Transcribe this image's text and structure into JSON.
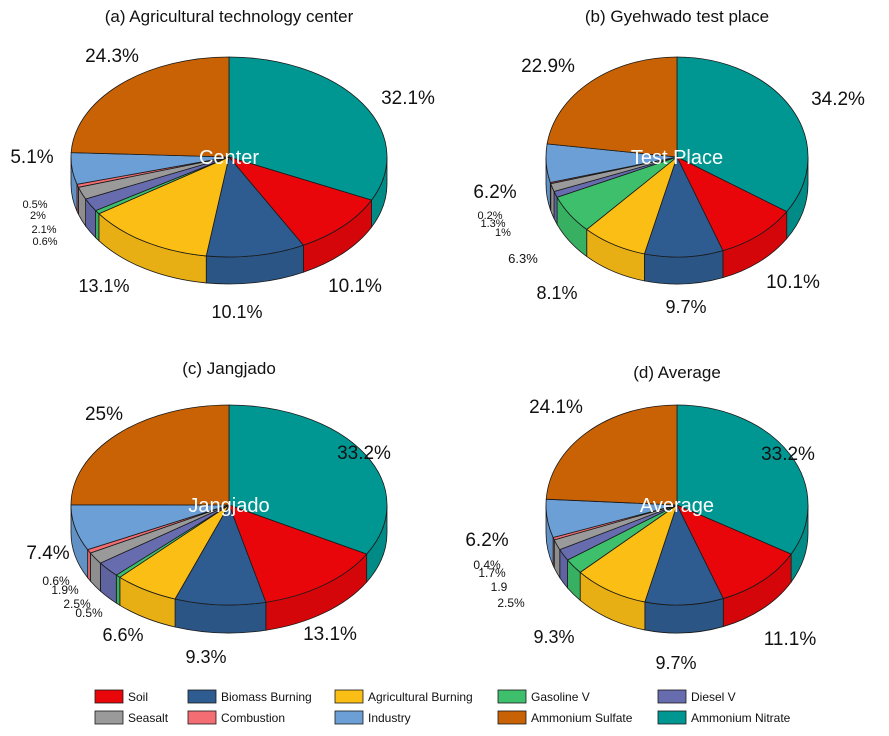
{
  "legend": [
    {
      "name": "Soil",
      "color": "#e8060b"
    },
    {
      "name": "Biomass Burning",
      "color": "#2e5c90"
    },
    {
      "name": "Agricultural Burning",
      "color": "#fbbe15"
    },
    {
      "name": "Gasoline V",
      "color": "#3dbf6b"
    },
    {
      "name": "Diesel V",
      "color": "#676cae"
    },
    {
      "name": "Seasalt",
      "color": "#9a9a9a"
    },
    {
      "name": "Combustion",
      "color": "#f46d72"
    },
    {
      "name": "Industry",
      "color": "#6b9fd6"
    },
    {
      "name": "Ammonium Sulfate",
      "color": "#c86204"
    },
    {
      "name": "Ammonium Nitrate",
      "color": "#009793"
    }
  ],
  "chart_data": [
    {
      "type": "pie",
      "title": "(a) Agricultural technology center",
      "center_label": "Center",
      "slices": [
        {
          "category": "Ammonium Nitrate",
          "value": 32.1,
          "label": "32.1%"
        },
        {
          "category": "Soil",
          "value": 10.1,
          "label": "10.1%"
        },
        {
          "category": "Biomass Burning",
          "value": 10.1,
          "label": "10.1%"
        },
        {
          "category": "Agricultural Burning",
          "value": 13.1,
          "label": "13.1%"
        },
        {
          "category": "Gasoline V",
          "value": 0.6,
          "label": "0.6%"
        },
        {
          "category": "Diesel V",
          "value": 2.1,
          "label": "2.1%"
        },
        {
          "category": "Seasalt",
          "value": 2,
          "label": "2%"
        },
        {
          "category": "Combustion",
          "value": 0.5,
          "label": "0.5%"
        },
        {
          "category": "Industry",
          "value": 5.1,
          "label": "5.1%"
        },
        {
          "category": "Ammonium Sulfate",
          "value": 24.3,
          "label": "24.3%"
        }
      ]
    },
    {
      "type": "pie",
      "title": "(b) Gyehwado test place",
      "center_label": "Test Place",
      "slices": [
        {
          "category": "Ammonium Nitrate",
          "value": 34.2,
          "label": "34.2%"
        },
        {
          "category": "Soil",
          "value": 10.1,
          "label": "10.1%"
        },
        {
          "category": "Biomass Burning",
          "value": 9.7,
          "label": "9.7%"
        },
        {
          "category": "Agricultural Burning",
          "value": 8.1,
          "label": "8.1%"
        },
        {
          "category": "Gasoline V",
          "value": 6.3,
          "label": "6.3%"
        },
        {
          "category": "Diesel V",
          "value": 1,
          "label": "1%"
        },
        {
          "category": "Seasalt",
          "value": 1.3,
          "label": "1.3%"
        },
        {
          "category": "Combustion",
          "value": 0.2,
          "label": "0.2%"
        },
        {
          "category": "Industry",
          "value": 6.2,
          "label": "6.2%"
        },
        {
          "category": "Ammonium Sulfate",
          "value": 22.9,
          "label": "22.9%"
        }
      ]
    },
    {
      "type": "pie",
      "title": "(c) Jangjado",
      "center_label": "Jangjado",
      "slices": [
        {
          "category": "Ammonium Nitrate",
          "value": 33.2,
          "label": "33.2%"
        },
        {
          "category": "Soil",
          "value": 13.1,
          "label": "13.1%"
        },
        {
          "category": "Biomass Burning",
          "value": 9.3,
          "label": "9.3%"
        },
        {
          "category": "Agricultural Burning",
          "value": 6.6,
          "label": "6.6%"
        },
        {
          "category": "Gasoline V",
          "value": 0.5,
          "label": "0.5%"
        },
        {
          "category": "Diesel V",
          "value": 2.5,
          "label": "2.5%"
        },
        {
          "category": "Seasalt",
          "value": 1.9,
          "label": "1.9%"
        },
        {
          "category": "Combustion",
          "value": 0.6,
          "label": "0.6%"
        },
        {
          "category": "Industry",
          "value": 7.4,
          "label": "7.4%"
        },
        {
          "category": "Ammonium Sulfate",
          "value": 25,
          "label": "25%"
        }
      ]
    },
    {
      "type": "pie",
      "title": "(d) Average",
      "center_label": "Average",
      "slices": [
        {
          "category": "Ammonium Nitrate",
          "value": 33.2,
          "label": "33.2%"
        },
        {
          "category": "Soil",
          "value": 11.1,
          "label": "11.1%"
        },
        {
          "category": "Biomass Burning",
          "value": 9.7,
          "label": "9.7%"
        },
        {
          "category": "Agricultural Burning",
          "value": 9.3,
          "label": "9.3%"
        },
        {
          "category": "Gasoline V",
          "value": 2.5,
          "label": "2.5%"
        },
        {
          "category": "Diesel V",
          "value": 1.9,
          "label": "1.9"
        },
        {
          "category": "Seasalt",
          "value": 1.7,
          "label": "1.7%"
        },
        {
          "category": "Combustion",
          "value": 0.4,
          "label": "0.4%"
        },
        {
          "category": "Industry",
          "value": 6.2,
          "label": "6.2%"
        },
        {
          "category": "Ammonium Sulfate",
          "value": 24.1,
          "label": "24.1%"
        }
      ]
    }
  ]
}
